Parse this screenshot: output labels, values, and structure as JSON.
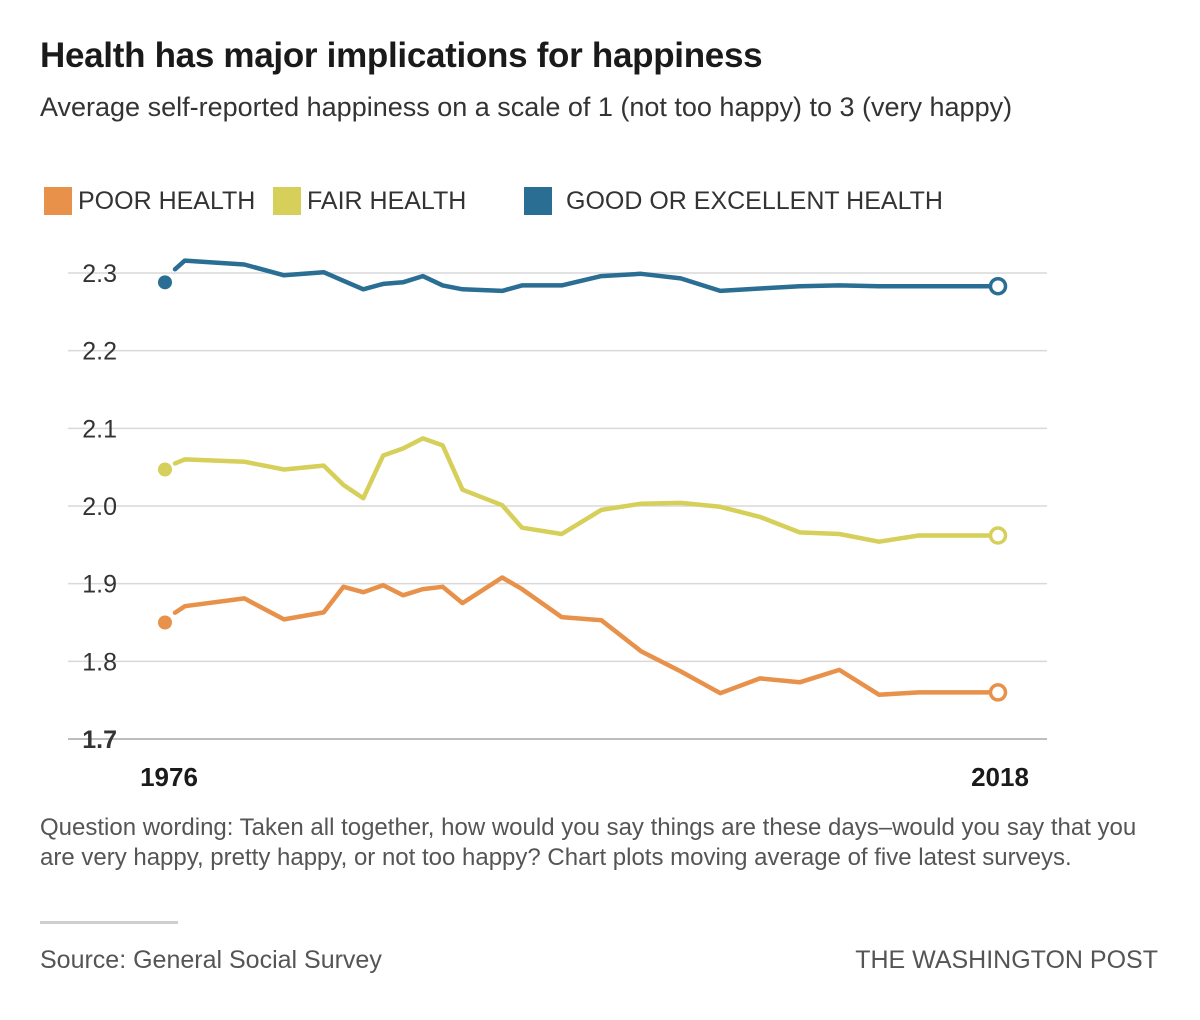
{
  "header": {
    "title": "Health has major implications for happiness",
    "subtitle": "Average self-reported happiness on a scale of 1 (not too happy) to 3 (very happy)"
  },
  "legend": {
    "items": [
      {
        "label": "POOR HEALTH",
        "color": "#e8914a"
      },
      {
        "label": "FAIR HEALTH",
        "color": "#d6cf5a"
      },
      {
        "label": "GOOD OR EXCELLENT HEALTH",
        "color": "#2a6f93"
      }
    ]
  },
  "chart_data": {
    "type": "line",
    "title": "Health has major implications for happiness",
    "subtitle": "Average self-reported happiness on a scale of 1 (not too happy) to 3 (very happy)",
    "xlabel": "",
    "ylabel": "",
    "xlim": [
      1976,
      2018
    ],
    "ylim": [
      1.7,
      2.3
    ],
    "yticks": [
      1.7,
      1.8,
      1.9,
      2.0,
      2.1,
      2.2,
      2.3
    ],
    "ytick_labels": [
      "1.7",
      "1.8",
      "1.9",
      "2.0",
      "2.1",
      "2.2",
      "2.3"
    ],
    "xtick_labels": [
      "1976",
      "2018"
    ],
    "grid": true,
    "x": [
      1976,
      1977,
      1980,
      1982,
      1984,
      1985,
      1986,
      1987,
      1988,
      1989,
      1990,
      1991,
      1993,
      1994,
      1996,
      1998,
      2000,
      2002,
      2004,
      2006,
      2008,
      2010,
      2012,
      2014,
      2016,
      2018
    ],
    "series": [
      {
        "name": "GOOD OR EXCELLENT HEALTH",
        "color": "#2a6f93",
        "values": [
          2.288,
          2.316,
          2.311,
          2.297,
          2.301,
          2.29,
          2.279,
          2.286,
          2.288,
          2.296,
          2.284,
          2.279,
          2.277,
          2.284,
          2.284,
          2.296,
          2.299,
          2.293,
          2.277,
          2.28,
          2.283,
          2.284,
          2.283,
          2.283,
          2.283,
          2.283
        ]
      },
      {
        "name": "FAIR HEALTH",
        "color": "#d6cf5a",
        "values": [
          2.047,
          2.06,
          2.057,
          2.047,
          2.052,
          2.027,
          2.01,
          2.065,
          2.074,
          2.087,
          2.078,
          2.021,
          2.001,
          1.972,
          1.964,
          1.995,
          2.003,
          2.004,
          1.999,
          1.986,
          1.966,
          1.964,
          1.954,
          1.962,
          1.962,
          1.962
        ]
      },
      {
        "name": "POOR HEALTH",
        "color": "#e8914a",
        "values": [
          1.85,
          1.871,
          1.881,
          1.854,
          1.863,
          1.896,
          1.889,
          1.898,
          1.885,
          1.893,
          1.896,
          1.875,
          1.908,
          1.893,
          1.857,
          1.853,
          1.813,
          1.787,
          1.759,
          1.778,
          1.773,
          1.789,
          1.757,
          1.76,
          1.76,
          1.76
        ]
      }
    ]
  },
  "footer": {
    "note": "Question wording: Taken all together, how would you say things are these days–would you say that you are very happy, pretty happy, or not too happy? Chart plots moving average of five latest surveys.",
    "source": "Source: General Social Survey",
    "credit": "THE WASHINGTON POST"
  }
}
